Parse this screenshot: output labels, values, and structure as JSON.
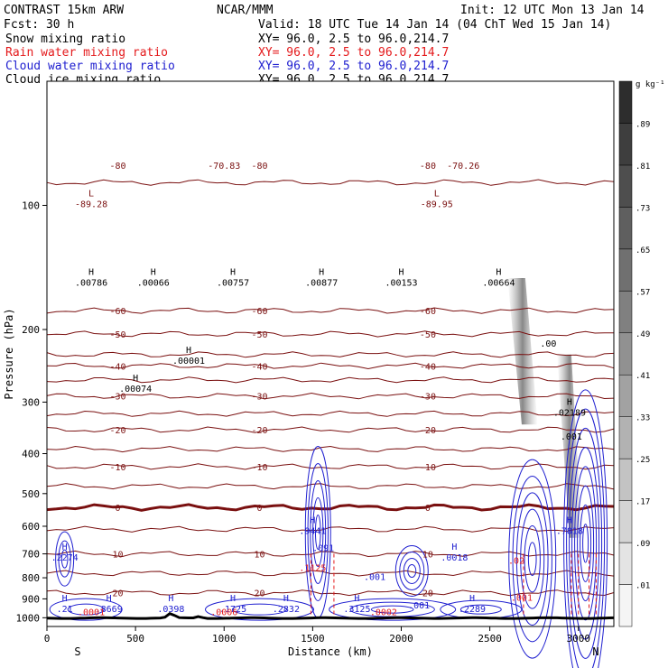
{
  "header": {
    "model": "CONTRAST 15km ARW",
    "forecast": "Fcst:   30 h",
    "center": "NCAR/MMM",
    "init": "Init: 12 UTC Mon 13 Jan 14",
    "valid": "Valid: 18 UTC Tue 14 Jan 14 (04 ChT Wed 15 Jan 14)"
  },
  "fields": [
    {
      "name": "Snow mixing ratio",
      "xy": "XY=  96.0,  2.5 to  96.0,214.7",
      "color": "#000000"
    },
    {
      "name": "Rain water mixing ratio",
      "xy": "XY=  96.0,  2.5 to  96.0,214.7",
      "color": "#e41a1c"
    },
    {
      "name": "Cloud water mixing ratio",
      "xy": "XY=  96.0,  2.5 to  96.0,214.7",
      "color": "#2020d0"
    },
    {
      "name": "Cloud ice mixing ratio",
      "xy": "XY=  96.0,  2.5 to  96.0,214.7",
      "color": "#000000"
    }
  ],
  "chart_data": {
    "type": "cross-section contour",
    "xlabel": "Distance (km)",
    "ylabel": "Pressure (hPa)",
    "xlim": [
      0,
      3200
    ],
    "ylim": [
      1050,
      50
    ],
    "y_log": true,
    "x_ticks": [
      0,
      500,
      1000,
      1500,
      2000,
      2500,
      3000
    ],
    "y_ticks": [
      100,
      200,
      300,
      400,
      500,
      600,
      700,
      800,
      900,
      1000
    ],
    "x_end_labels": {
      "left": "S",
      "right": "N"
    },
    "colorbar": {
      "unit": "g kg⁻¹",
      "ticks": [
        ".01",
        ".09",
        ".17",
        ".25",
        ".33",
        ".41",
        ".49",
        ".57",
        ".65",
        ".73",
        ".81",
        ".89"
      ],
      "colors": [
        "#f7f7f7",
        "#d4d4d4"
      ]
    },
    "temperature_contours": [
      {
        "label": "-80",
        "p": 80
      },
      {
        "label": "-70.83",
        "p": 80
      },
      {
        "label": "-70.26",
        "p": 80
      },
      {
        "label": "-60",
        "p": 180
      },
      {
        "label": "-50",
        "p": 205
      },
      {
        "label": "-40",
        "p": 245
      },
      {
        "label": "-30",
        "p": 290
      },
      {
        "label": "-20",
        "p": 350
      },
      {
        "label": "-10",
        "p": 430
      },
      {
        "label": "0",
        "p": 540
      },
      {
        "label": "10",
        "p": 700
      },
      {
        "label": "20",
        "p": 870
      }
    ],
    "extrema": [
      {
        "kind": "L",
        "label": "-89.28",
        "x": 250,
        "p": 100
      },
      {
        "kind": "L",
        "label": "-89.95",
        "x": 2200,
        "p": 100
      },
      {
        "kind": "H",
        "label": ".00786",
        "x": 250,
        "p": 155
      },
      {
        "kind": "H",
        "label": ".00066",
        "x": 600,
        "p": 155
      },
      {
        "kind": "H",
        "label": ".00757",
        "x": 1050,
        "p": 155
      },
      {
        "kind": "H",
        "label": ".00877",
        "x": 1550,
        "p": 155
      },
      {
        "kind": "H",
        "label": ".00153",
        "x": 2000,
        "p": 155
      },
      {
        "kind": "H",
        "label": ".00664",
        "x": 2550,
        "p": 155
      },
      {
        "kind": "H",
        "label": ".00001",
        "x": 800,
        "p": 240
      },
      {
        "kind": "H",
        "label": ".00074",
        "x": 500,
        "p": 280
      },
      {
        "kind": "H",
        "label": ".02189",
        "x": 2950,
        "p": 320
      },
      {
        "kind": "H",
        "label": ".9441",
        "x": 1500,
        "p": 620
      },
      {
        "kind": "H",
        "label": ".7818",
        "x": 2950,
        "p": 620
      },
      {
        "kind": "H",
        "label": ".2274",
        "x": 100,
        "p": 720
      },
      {
        "kind": "H",
        "label": ".0018",
        "x": 2300,
        "p": 720
      },
      {
        "kind": "H",
        "label": ".21",
        "x": 100,
        "p": 960
      },
      {
        "kind": "H",
        "label": ".8669",
        "x": 350,
        "p": 960
      },
      {
        "kind": "H",
        "label": ".0398",
        "x": 700,
        "p": 960
      },
      {
        "kind": "H",
        "label": ".1725",
        "x": 1050,
        "p": 960
      },
      {
        "kind": "H",
        "label": ".2832",
        "x": 1350,
        "p": 960
      },
      {
        "kind": "H",
        "label": ".3125",
        "x": 1750,
        "p": 960
      },
      {
        "kind": "H",
        "label": ".2289",
        "x": 2400,
        "p": 960
      }
    ],
    "other_labels": [
      ".001",
      ".0001",
      ".0002",
      ".0006",
      ".001",
      ".02",
      ".001",
      ".00",
      ".001",
      ".091",
      ".1125"
    ]
  }
}
